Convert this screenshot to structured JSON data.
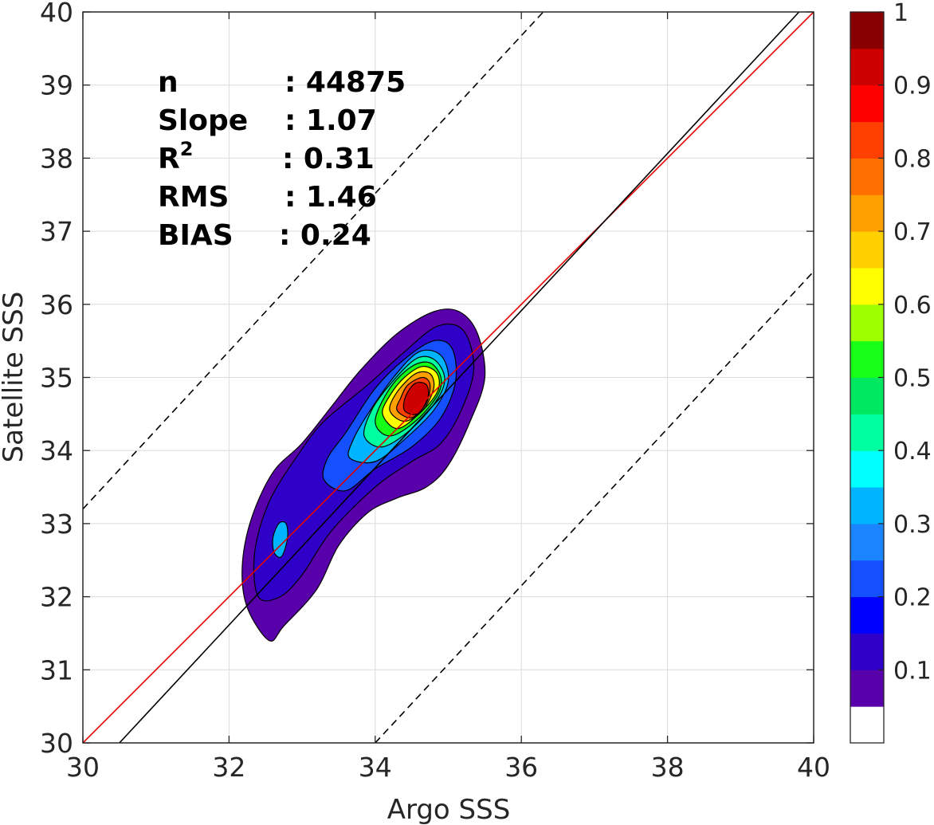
{
  "chart_data": {
    "type": "heatmap",
    "xlabel": "Argo SSS",
    "ylabel": "Satellite SSS",
    "xlim": [
      30,
      40
    ],
    "ylim": [
      30,
      40
    ],
    "x_ticks": [
      "30",
      "32",
      "34",
      "36",
      "38",
      "40"
    ],
    "y_ticks": [
      "30",
      "31",
      "32",
      "33",
      "34",
      "35",
      "36",
      "37",
      "38",
      "39",
      "40"
    ],
    "grid": true,
    "stats": [
      {
        "label": "n",
        "value": ": 44875"
      },
      {
        "label": "Slope",
        "value": ": 1.07"
      },
      {
        "label": "R",
        "sup": "2",
        "value": ": 0.31"
      },
      {
        "label": "RMS",
        "value": ": 1.46"
      },
      {
        "label": "BIAS",
        "value": ": 0.24"
      }
    ],
    "reference_lines": [
      {
        "name": "one-to-one",
        "color": "#e00000",
        "points": [
          [
            30,
            30
          ],
          [
            40,
            40
          ]
        ]
      },
      {
        "name": "regression",
        "color": "#000000",
        "points": [
          [
            30.5,
            30
          ],
          [
            39.8,
            40
          ]
        ]
      },
      {
        "name": "upper-bound",
        "color": "#000000",
        "style": "dashed",
        "points": [
          [
            30,
            33.2
          ],
          [
            36.3,
            40
          ]
        ]
      },
      {
        "name": "lower-bound",
        "color": "#000000",
        "style": "dashed",
        "points": [
          [
            34,
            30
          ],
          [
            40,
            36.45
          ]
        ]
      }
    ],
    "density_contours": [
      {
        "level": 0.05,
        "points": [
          [
            32.55,
            31.4
          ],
          [
            32.75,
            31.6
          ],
          [
            33.2,
            32.1
          ],
          [
            33.5,
            32.7
          ],
          [
            33.9,
            33.15
          ],
          [
            34.3,
            33.35
          ],
          [
            34.7,
            33.5
          ],
          [
            35.0,
            33.8
          ],
          [
            35.3,
            34.4
          ],
          [
            35.5,
            35.0
          ],
          [
            35.4,
            35.6
          ],
          [
            35.15,
            35.9
          ],
          [
            34.8,
            35.9
          ],
          [
            34.3,
            35.6
          ],
          [
            33.8,
            35.1
          ],
          [
            33.4,
            34.6
          ],
          [
            33.0,
            34.1
          ],
          [
            32.6,
            33.7
          ],
          [
            32.3,
            33.05
          ],
          [
            32.18,
            32.4
          ],
          [
            32.25,
            31.85
          ]
        ]
      },
      {
        "level": 0.1,
        "points": [
          [
            32.4,
            32.0
          ],
          [
            32.7,
            32.0
          ],
          [
            33.0,
            32.3
          ],
          [
            33.4,
            32.9
          ],
          [
            34.0,
            33.5
          ],
          [
            34.5,
            33.85
          ],
          [
            34.9,
            34.1
          ],
          [
            35.2,
            34.6
          ],
          [
            35.35,
            35.15
          ],
          [
            35.2,
            35.65
          ],
          [
            34.85,
            35.7
          ],
          [
            34.4,
            35.35
          ],
          [
            33.9,
            34.9
          ],
          [
            33.3,
            34.4
          ],
          [
            32.95,
            33.95
          ],
          [
            32.55,
            33.3
          ],
          [
            32.35,
            32.6
          ]
        ]
      },
      {
        "level": 0.2,
        "points": [
          [
            33.3,
            33.6
          ],
          [
            33.6,
            33.45
          ],
          [
            34.0,
            33.75
          ],
          [
            34.5,
            34.05
          ],
          [
            34.9,
            34.45
          ],
          [
            35.1,
            34.95
          ],
          [
            35.05,
            35.4
          ],
          [
            34.8,
            35.5
          ],
          [
            34.4,
            35.25
          ],
          [
            34.0,
            34.85
          ],
          [
            33.6,
            34.25
          ],
          [
            33.35,
            33.9
          ]
        ]
      },
      {
        "level": 0.3,
        "points": [
          [
            33.65,
            33.9
          ],
          [
            34.0,
            33.85
          ],
          [
            34.4,
            34.15
          ],
          [
            34.8,
            34.55
          ],
          [
            35.0,
            34.95
          ],
          [
            34.9,
            35.3
          ],
          [
            34.6,
            35.35
          ],
          [
            34.25,
            35.0
          ],
          [
            33.9,
            34.5
          ],
          [
            33.7,
            34.15
          ]
        ]
      },
      {
        "level": 0.4,
        "points": [
          [
            33.85,
            34.2
          ],
          [
            34.1,
            34.05
          ],
          [
            34.5,
            34.3
          ],
          [
            34.85,
            34.7
          ],
          [
            34.95,
            35.0
          ],
          [
            34.8,
            35.25
          ],
          [
            34.55,
            35.25
          ],
          [
            34.2,
            34.9
          ],
          [
            33.95,
            34.55
          ]
        ]
      },
      {
        "level": 0.5,
        "points": [
          [
            34.0,
            34.4
          ],
          [
            34.2,
            34.2
          ],
          [
            34.55,
            34.4
          ],
          [
            34.85,
            34.75
          ],
          [
            34.9,
            35.0
          ],
          [
            34.75,
            35.2
          ],
          [
            34.5,
            35.15
          ],
          [
            34.2,
            34.85
          ]
        ]
      },
      {
        "level": 0.6,
        "points": [
          [
            34.1,
            34.5
          ],
          [
            34.3,
            34.3
          ],
          [
            34.6,
            34.5
          ],
          [
            34.85,
            34.8
          ],
          [
            34.85,
            35.05
          ],
          [
            34.65,
            35.15
          ],
          [
            34.4,
            35.0
          ],
          [
            34.2,
            34.75
          ]
        ]
      },
      {
        "level": 0.7,
        "points": [
          [
            34.2,
            34.55
          ],
          [
            34.4,
            34.4
          ],
          [
            34.65,
            34.55
          ],
          [
            34.8,
            34.85
          ],
          [
            34.75,
            35.05
          ],
          [
            34.55,
            35.05
          ],
          [
            34.3,
            34.8
          ]
        ]
      },
      {
        "level": 0.8,
        "points": [
          [
            34.3,
            34.55
          ],
          [
            34.5,
            34.45
          ],
          [
            34.7,
            34.65
          ],
          [
            34.75,
            34.9
          ],
          [
            34.65,
            35.0
          ],
          [
            34.45,
            34.9
          ],
          [
            34.35,
            34.72
          ]
        ]
      },
      {
        "level": 0.9,
        "points": [
          [
            34.4,
            34.55
          ],
          [
            34.58,
            34.5
          ],
          [
            34.72,
            34.72
          ],
          [
            34.7,
            34.9
          ],
          [
            34.55,
            34.92
          ],
          [
            34.42,
            34.75
          ]
        ]
      },
      {
        "level": 0.3,
        "points": [
          [
            32.62,
            32.6
          ],
          [
            32.72,
            32.55
          ],
          [
            32.8,
            32.8
          ],
          [
            32.78,
            33.0
          ],
          [
            32.68,
            33.0
          ],
          [
            32.6,
            32.8
          ]
        ]
      }
    ],
    "colorbar": {
      "ticks": [
        "0.1",
        "0.2",
        "0.3",
        "0.4",
        "0.5",
        "0.6",
        "0.7",
        "0.8",
        "0.9",
        "1"
      ],
      "colors": [
        "#ffffff",
        "#5800aa",
        "#2f00c8",
        "#0000ff",
        "#1550ff",
        "#1b84ff",
        "#00b4ff",
        "#00ffff",
        "#00ffa0",
        "#00e860",
        "#17ff17",
        "#9eff00",
        "#ffff00",
        "#ffd000",
        "#ffa000",
        "#ff7000",
        "#ff4000",
        "#ff0000",
        "#cc0000",
        "#880000"
      ]
    }
  }
}
